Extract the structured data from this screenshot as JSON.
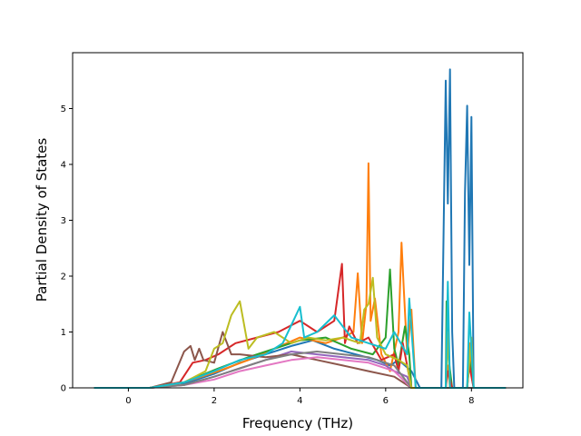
{
  "chart_data": {
    "type": "line",
    "title": "",
    "xlabel": "Frequency (THz)",
    "ylabel": "Partial Density of States",
    "xlim": [
      -1.3,
      9.2
    ],
    "ylim": [
      0,
      6.0
    ],
    "xticks": [
      0,
      2,
      4,
      6,
      8
    ],
    "yticks": [
      0,
      1,
      2,
      3,
      4,
      5
    ],
    "grid": false,
    "legend": "none",
    "series": [
      {
        "color": "#1f77b4",
        "x": [
          -0.8,
          0.5,
          1.2,
          2.0,
          2.6,
          3.2,
          3.8,
          4.3,
          4.8,
          5.3,
          5.8,
          6.1,
          6.3,
          6.6,
          6.8,
          7.3,
          7.4,
          7.45,
          7.5,
          7.55,
          7.6,
          7.8,
          7.85,
          7.9,
          7.95,
          8.0,
          8.05,
          8.2,
          8.8
        ],
        "y": [
          0,
          0,
          0.05,
          0.25,
          0.45,
          0.6,
          0.75,
          0.85,
          0.7,
          0.6,
          0.5,
          0.4,
          0.5,
          0.3,
          0,
          0,
          5.5,
          3.3,
          5.7,
          1.0,
          0,
          0,
          3.5,
          5.05,
          2.2,
          4.85,
          0,
          0,
          0
        ]
      },
      {
        "color": "#ff7f0e",
        "x": [
          -0.8,
          0.5,
          1.3,
          2.1,
          2.8,
          3.4,
          4.0,
          4.6,
          5.0,
          5.25,
          5.35,
          5.45,
          5.55,
          5.6,
          5.65,
          5.75,
          5.9,
          6.1,
          6.3,
          6.37,
          6.42,
          6.5,
          6.6,
          6.7,
          7.4,
          7.45,
          7.5,
          7.6,
          7.9,
          7.95,
          8.05,
          8.8
        ],
        "y": [
          0,
          0,
          0.1,
          0.3,
          0.5,
          0.7,
          0.9,
          0.8,
          0.9,
          1.0,
          2.05,
          0.8,
          1.5,
          4.02,
          1.2,
          1.6,
          0.6,
          0.3,
          1.0,
          2.6,
          1.8,
          0.6,
          1.4,
          0,
          0,
          0.4,
          0,
          0,
          0,
          0.8,
          0,
          0
        ]
      },
      {
        "color": "#2ca02c",
        "x": [
          -0.8,
          0.5,
          1.3,
          2.1,
          2.8,
          3.4,
          4.0,
          4.6,
          5.2,
          5.7,
          6.0,
          6.1,
          6.2,
          6.3,
          6.45,
          6.55,
          6.6,
          7.4,
          7.42,
          7.47,
          7.55,
          7.9,
          7.95,
          8.05,
          8.8
        ],
        "y": [
          0,
          0,
          0.1,
          0.35,
          0.55,
          0.7,
          0.85,
          0.9,
          0.7,
          0.6,
          0.9,
          2.12,
          0.7,
          0.4,
          1.1,
          0.6,
          0,
          0,
          1.55,
          0.5,
          0,
          0,
          0.5,
          0,
          0
        ]
      },
      {
        "color": "#d62728",
        "x": [
          -0.8,
          0.5,
          1.2,
          1.5,
          1.8,
          2.1,
          2.5,
          3.0,
          3.5,
          4.0,
          4.4,
          4.8,
          4.98,
          5.05,
          5.15,
          5.35,
          5.6,
          5.9,
          6.2,
          6.3,
          6.4,
          6.5,
          6.6,
          7.4,
          7.45,
          7.55,
          7.9,
          7.95,
          8.05,
          8.8
        ],
        "y": [
          0,
          0,
          0.1,
          0.45,
          0.5,
          0.6,
          0.8,
          0.9,
          1.0,
          1.2,
          1.0,
          1.2,
          2.22,
          0.8,
          1.1,
          0.8,
          0.9,
          0.5,
          0.6,
          0.3,
          0.8,
          0.4,
          0,
          0,
          0.3,
          0,
          0,
          0.4,
          0,
          0
        ]
      },
      {
        "color": "#9467bd",
        "x": [
          -0.8,
          0.5,
          1.3,
          2.0,
          2.6,
          3.2,
          3.8,
          4.4,
          5.0,
          5.6,
          6.0,
          6.2,
          6.5,
          6.6,
          8.8
        ],
        "y": [
          0,
          0,
          0.05,
          0.2,
          0.35,
          0.5,
          0.65,
          0.6,
          0.55,
          0.5,
          0.4,
          0.3,
          0.2,
          0,
          0
        ]
      },
      {
        "color": "#8c564b",
        "x": [
          -0.8,
          0.5,
          1.0,
          1.3,
          1.45,
          1.55,
          1.65,
          1.75,
          2.0,
          2.2,
          2.4,
          2.6,
          3.2,
          3.8,
          4.4,
          5.0,
          5.6,
          6.2,
          6.6,
          8.8
        ],
        "y": [
          0,
          0,
          0.1,
          0.65,
          0.75,
          0.5,
          0.7,
          0.5,
          0.45,
          1.0,
          0.6,
          0.6,
          0.55,
          0.6,
          0.5,
          0.4,
          0.3,
          0.2,
          0,
          0
        ]
      },
      {
        "color": "#e377c2",
        "x": [
          -0.8,
          0.5,
          1.3,
          2.0,
          2.6,
          3.2,
          3.8,
          4.4,
          5.0,
          5.6,
          6.2,
          6.6,
          8.8
        ],
        "y": [
          0,
          0,
          0.05,
          0.15,
          0.3,
          0.4,
          0.5,
          0.55,
          0.5,
          0.45,
          0.3,
          0,
          0
        ]
      },
      {
        "color": "#7f7f7f",
        "x": [
          -0.8,
          0.5,
          1.3,
          2.0,
          2.6,
          3.2,
          3.8,
          4.4,
          5.0,
          5.6,
          6.2,
          6.6,
          8.8
        ],
        "y": [
          0,
          0,
          0.05,
          0.2,
          0.35,
          0.5,
          0.6,
          0.65,
          0.6,
          0.55,
          0.4,
          0,
          0
        ]
      },
      {
        "color": "#bcbd22",
        "x": [
          -0.8,
          0.5,
          1.3,
          1.8,
          2.0,
          2.2,
          2.4,
          2.6,
          2.8,
          3.0,
          3.4,
          3.8,
          4.2,
          4.6,
          5.0,
          5.4,
          5.5,
          5.6,
          5.7,
          5.8,
          6.0,
          6.3,
          6.5,
          6.6,
          7.4,
          7.45,
          7.5,
          7.9,
          8.0,
          8.05,
          8.8
        ],
        "y": [
          0,
          0,
          0.1,
          0.3,
          0.7,
          0.8,
          1.3,
          1.55,
          0.7,
          0.9,
          1.0,
          0.8,
          0.9,
          0.85,
          0.9,
          0.8,
          1.4,
          1.5,
          1.97,
          0.9,
          0.6,
          0.5,
          0.4,
          0,
          0,
          1.0,
          0,
          0,
          0.9,
          0,
          0
        ]
      },
      {
        "color": "#17becf",
        "x": [
          -0.8,
          0.5,
          1.3,
          2.0,
          2.6,
          3.2,
          3.6,
          4.0,
          4.1,
          4.4,
          4.8,
          5.2,
          5.6,
          6.0,
          6.2,
          6.5,
          6.55,
          6.7,
          7.4,
          7.45,
          7.5,
          7.9,
          7.95,
          8.05,
          8.8
        ],
        "y": [
          0,
          0,
          0.1,
          0.3,
          0.5,
          0.6,
          0.8,
          1.45,
          0.9,
          1.0,
          1.3,
          0.9,
          0.8,
          0.7,
          1.0,
          0.6,
          1.6,
          0,
          0,
          1.9,
          0,
          0,
          1.35,
          0,
          0
        ]
      }
    ]
  }
}
